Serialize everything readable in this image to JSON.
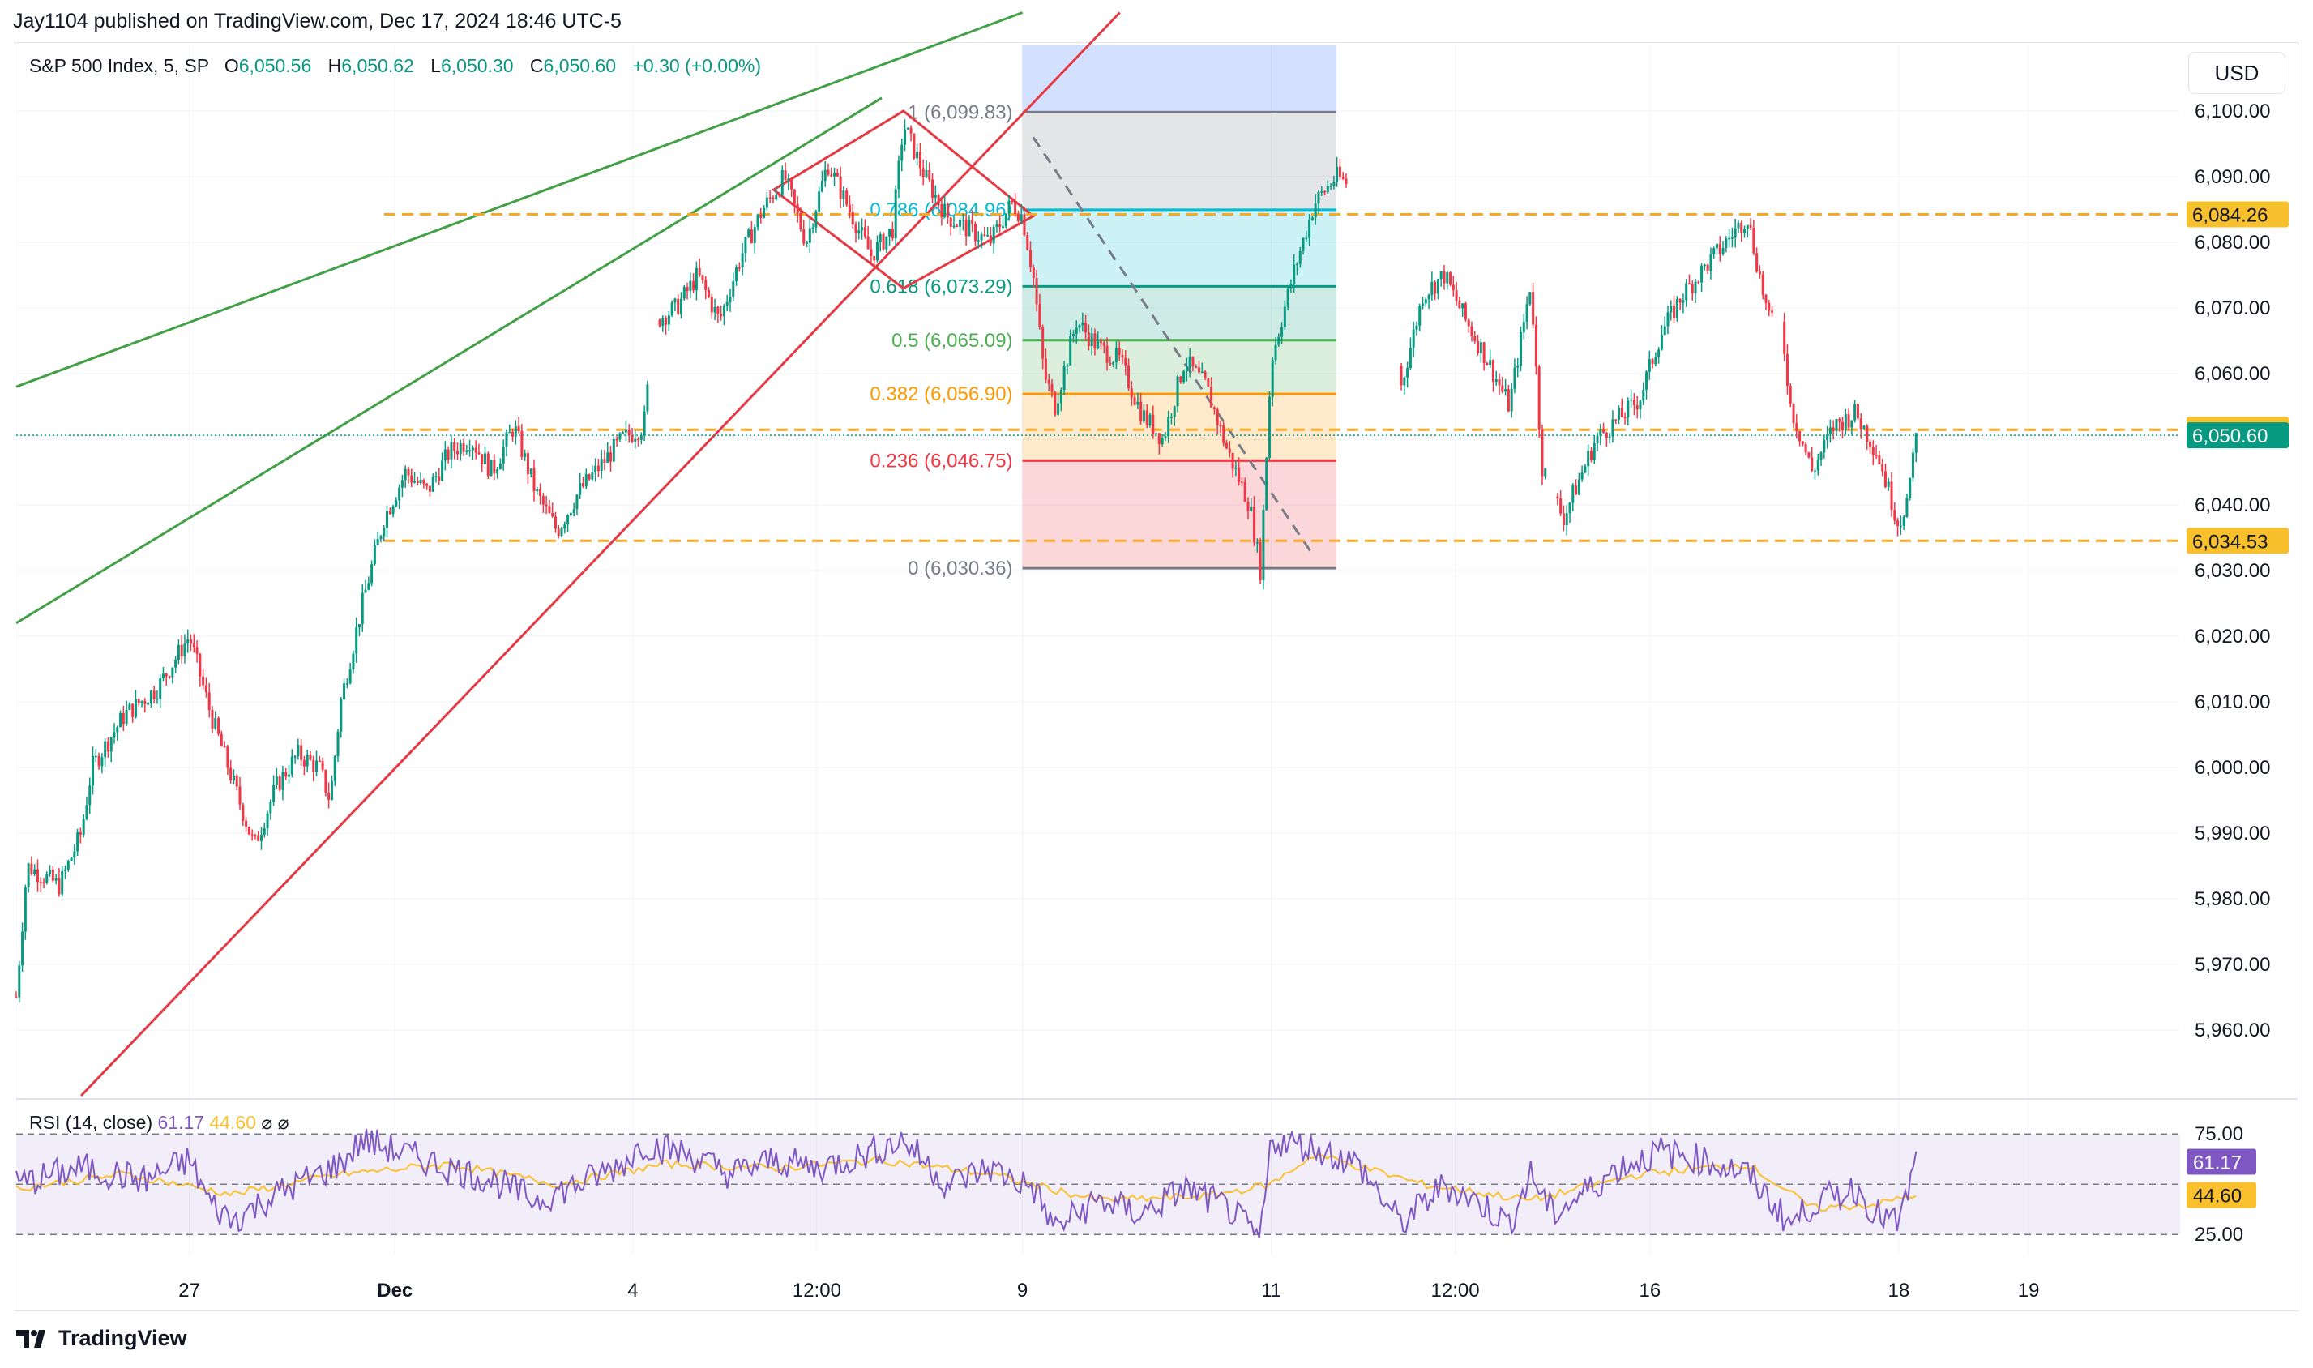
{
  "banner": "Jay1104 published on TradingView.com, Dec 17, 2024 18:46 UTC-5",
  "legend": {
    "symbol": "S&P 500 Index, 5, SP",
    "open_key": "O",
    "open": "6,050.56",
    "high_key": "H",
    "high": "6,050.62",
    "low_key": "L",
    "low": "6,050.30",
    "close_key": "C",
    "close": "6,050.60",
    "change": "+0.30 (+0.00%)"
  },
  "currency_button": "USD",
  "rsi_legend": {
    "label": "RSI (14, close)",
    "rsi_value": "61.17",
    "ma_value": "44.60",
    "glyph1": "⌀",
    "glyph2": "⌀"
  },
  "footer": "TradingView",
  "colors": {
    "up": "#089981",
    "down": "#f23645",
    "green_line": "#43a047",
    "red_line": "#e53944",
    "price_tag": "#089981",
    "level_tag": "#f9c02e",
    "rsi": "#7e57c2",
    "rsi_ma": "#fbc02d"
  },
  "chart_data": {
    "type": "candlestick",
    "y_axis": {
      "range": [
        5950,
        6110
      ],
      "ticks": [
        "6,100.00",
        "6,090.00",
        "6,080.00",
        "6,070.00",
        "6,060.00",
        "6,050.00",
        "6,040.00",
        "6,030.00",
        "6,020.00",
        "6,010.00",
        "6,000.00",
        "5,990.00",
        "5,980.00",
        "5,970.00",
        "5,960.00"
      ],
      "tick_values": [
        6100,
        6090,
        6080,
        6070,
        6060,
        6050,
        6040,
        6030,
        6020,
        6010,
        6000,
        5990,
        5980,
        5970,
        5960
      ]
    },
    "x_axis": {
      "labels": [
        "27",
        "Dec",
        "4",
        "12:00",
        "9",
        "11",
        "12:00",
        "16",
        "18",
        "19"
      ],
      "positions": [
        0.08,
        0.175,
        0.285,
        0.37,
        0.465,
        0.58,
        0.665,
        0.755,
        0.87,
        0.93
      ]
    },
    "price_path": [
      [
        0.0,
        5965
      ],
      [
        0.005,
        5985
      ],
      [
        0.02,
        5982
      ],
      [
        0.03,
        5990
      ],
      [
        0.035,
        6000
      ],
      [
        0.05,
        6008
      ],
      [
        0.065,
        6012
      ],
      [
        0.08,
        6020
      ],
      [
        0.09,
        6008
      ],
      [
        0.1,
        5998
      ],
      [
        0.11,
        5988
      ],
      [
        0.12,
        5997
      ],
      [
        0.13,
        6002
      ],
      [
        0.14,
        6000
      ],
      [
        0.145,
        5995
      ],
      [
        0.15,
        6010
      ],
      [
        0.16,
        6025
      ],
      [
        0.17,
        6038
      ],
      [
        0.18,
        6045
      ],
      [
        0.19,
        6042
      ],
      [
        0.2,
        6048
      ],
      [
        0.21,
        6050
      ],
      [
        0.22,
        6045
      ],
      [
        0.23,
        6052
      ],
      [
        0.24,
        6042
      ],
      [
        0.25,
        6036
      ],
      [
        0.26,
        6042
      ],
      [
        0.27,
        6046
      ],
      [
        0.28,
        6050
      ],
      [
        0.29,
        6052
      ],
      [
        0.295,
        6068
      ],
      [
        0.305,
        6070
      ],
      [
        0.315,
        6075
      ],
      [
        0.325,
        6068
      ],
      [
        0.335,
        6078
      ],
      [
        0.345,
        6085
      ],
      [
        0.355,
        6090
      ],
      [
        0.365,
        6080
      ],
      [
        0.375,
        6092
      ],
      [
        0.385,
        6085
      ],
      [
        0.395,
        6078
      ],
      [
        0.405,
        6082
      ],
      [
        0.41,
        6098
      ],
      [
        0.42,
        6090
      ],
      [
        0.43,
        6084
      ],
      [
        0.44,
        6082
      ],
      [
        0.45,
        6080
      ],
      [
        0.46,
        6086
      ],
      [
        0.465,
        6084
      ],
      [
        0.47,
        6075
      ],
      [
        0.475,
        6060
      ],
      [
        0.48,
        6055
      ],
      [
        0.49,
        6068
      ],
      [
        0.5,
        6064
      ],
      [
        0.51,
        6062
      ],
      [
        0.52,
        6054
      ],
      [
        0.53,
        6050
      ],
      [
        0.54,
        6062
      ],
      [
        0.55,
        6058
      ],
      [
        0.56,
        6048
      ],
      [
        0.57,
        6040
      ],
      [
        0.575,
        6030
      ],
      [
        0.58,
        6062
      ],
      [
        0.59,
        6075
      ],
      [
        0.6,
        6086
      ],
      [
        0.61,
        6090
      ],
      [
        0.62,
        6088
      ],
      [
        0.63,
        6086
      ],
      [
        0.635,
        6070
      ],
      [
        0.64,
        6058
      ],
      [
        0.65,
        6072
      ],
      [
        0.66,
        6075
      ],
      [
        0.67,
        6068
      ],
      [
        0.68,
        6062
      ],
      [
        0.69,
        6055
      ],
      [
        0.7,
        6074
      ],
      [
        0.705,
        6046
      ],
      [
        0.715,
        6038
      ],
      [
        0.72,
        6042
      ],
      [
        0.73,
        6050
      ],
      [
        0.74,
        6053
      ],
      [
        0.75,
        6056
      ],
      [
        0.76,
        6066
      ],
      [
        0.77,
        6072
      ],
      [
        0.78,
        6076
      ],
      [
        0.79,
        6080
      ],
      [
        0.8,
        6084
      ],
      [
        0.81,
        6068
      ],
      [
        0.815,
        6070
      ],
      [
        0.82,
        6055
      ],
      [
        0.83,
        6045
      ],
      [
        0.84,
        6052
      ],
      [
        0.85,
        6054
      ],
      [
        0.86,
        6048
      ],
      [
        0.87,
        6037
      ],
      [
        0.875,
        6042
      ],
      [
        0.878,
        6052
      ]
    ],
    "fib_levels": [
      {
        "ratio": "1",
        "price": 6099.83,
        "label": "1 (6,099.83)",
        "color": "#787b86"
      },
      {
        "ratio": "0.786",
        "price": 6084.96,
        "label": "0.786 (6,084.96)",
        "color": "#00bcd4"
      },
      {
        "ratio": "0.618",
        "price": 6073.29,
        "label": "0.618 (6,073.29)",
        "color": "#089981"
      },
      {
        "ratio": "0.5",
        "price": 6065.09,
        "label": "0.5 (6,065.09)",
        "color": "#4caf50"
      },
      {
        "ratio": "0.382",
        "price": 6056.9,
        "label": "0.382 (6,056.90)",
        "color": "#ff9800"
      },
      {
        "ratio": "0.236",
        "price": 6046.75,
        "label": "0.236 (6,046.75)",
        "color": "#f23645"
      },
      {
        "ratio": "0",
        "price": 6030.36,
        "label": "0 (6,030.36)",
        "color": "#787b86"
      }
    ],
    "horizontal_levels": [
      {
        "price": 6084.26,
        "label": "6,084.26"
      },
      {
        "price": 6051.45,
        "label": "6,051.45"
      },
      {
        "price": 6034.53,
        "label": "6,034.53"
      }
    ],
    "last_price": {
      "price": 6050.6,
      "label": "6,050.60"
    },
    "rsi": {
      "ticks": [
        "75.00",
        "25.00"
      ],
      "tick_values": [
        75,
        25
      ],
      "value_label": "61.17",
      "ma_label": "44.60",
      "range": [
        15,
        90
      ],
      "path": [
        [
          0.0,
          50
        ],
        [
          0.03,
          58
        ],
        [
          0.06,
          52
        ],
        [
          0.08,
          62
        ],
        [
          0.09,
          40
        ],
        [
          0.1,
          32
        ],
        [
          0.12,
          45
        ],
        [
          0.14,
          55
        ],
        [
          0.15,
          60
        ],
        [
          0.16,
          72
        ],
        [
          0.18,
          65
        ],
        [
          0.2,
          58
        ],
        [
          0.22,
          52
        ],
        [
          0.24,
          42
        ],
        [
          0.26,
          50
        ],
        [
          0.28,
          60
        ],
        [
          0.29,
          70
        ],
        [
          0.31,
          65
        ],
        [
          0.33,
          55
        ],
        [
          0.35,
          62
        ],
        [
          0.37,
          58
        ],
        [
          0.39,
          64
        ],
        [
          0.41,
          72
        ],
        [
          0.43,
          50
        ],
        [
          0.45,
          58
        ],
        [
          0.47,
          48
        ],
        [
          0.48,
          28
        ],
        [
          0.5,
          42
        ],
        [
          0.52,
          35
        ],
        [
          0.54,
          48
        ],
        [
          0.56,
          38
        ],
        [
          0.575,
          22
        ],
        [
          0.58,
          72
        ],
        [
          0.6,
          68
        ],
        [
          0.62,
          60
        ],
        [
          0.63,
          45
        ],
        [
          0.64,
          30
        ],
        [
          0.66,
          50
        ],
        [
          0.68,
          38
        ],
        [
          0.69,
          30
        ],
        [
          0.7,
          55
        ],
        [
          0.71,
          35
        ],
        [
          0.72,
          42
        ],
        [
          0.74,
          58
        ],
        [
          0.76,
          66
        ],
        [
          0.78,
          62
        ],
        [
          0.8,
          55
        ],
        [
          0.82,
          30
        ],
        [
          0.83,
          40
        ],
        [
          0.85,
          48
        ],
        [
          0.86,
          35
        ],
        [
          0.87,
          30
        ],
        [
          0.878,
          61
        ]
      ],
      "ma_path": [
        [
          0.0,
          48
        ],
        [
          0.05,
          55
        ],
        [
          0.1,
          45
        ],
        [
          0.15,
          55
        ],
        [
          0.2,
          60
        ],
        [
          0.25,
          50
        ],
        [
          0.3,
          60
        ],
        [
          0.35,
          58
        ],
        [
          0.4,
          62
        ],
        [
          0.45,
          55
        ],
        [
          0.5,
          42
        ],
        [
          0.55,
          44
        ],
        [
          0.58,
          50
        ],
        [
          0.6,
          65
        ],
        [
          0.65,
          50
        ],
        [
          0.7,
          42
        ],
        [
          0.75,
          55
        ],
        [
          0.8,
          60
        ],
        [
          0.83,
          38
        ],
        [
          0.86,
          40
        ],
        [
          0.878,
          45
        ]
      ]
    }
  }
}
